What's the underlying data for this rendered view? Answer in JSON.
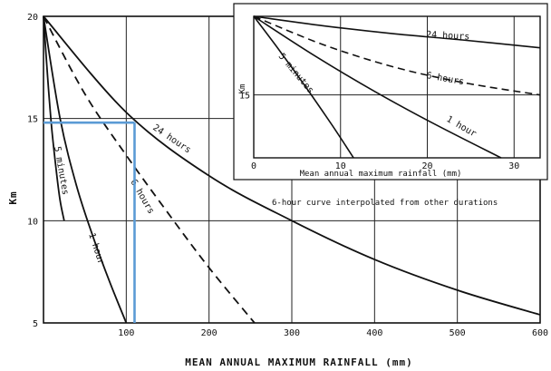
{
  "chart_data": [
    {
      "type": "line",
      "xlabel": "MEAN ANNUAL MAXIMUM RAINFALL (mm)",
      "ylabel": "Km",
      "xlim": [
        0,
        600
      ],
      "ylim": [
        5,
        20
      ],
      "x_ticks": [
        "100",
        "200",
        "300",
        "400",
        "500",
        "600"
      ],
      "y_ticks": [
        "5",
        "10",
        "15",
        "20"
      ],
      "grid": true,
      "note": "6-hour curve interpolated from other durations",
      "series": [
        {
          "name": "5 minutes",
          "style": "solid",
          "x": [
            0,
            5,
            10,
            15,
            20,
            25
          ],
          "y": [
            20,
            17,
            14.5,
            12.6,
            11,
            10
          ]
        },
        {
          "name": "1 hour",
          "style": "solid",
          "x": [
            0,
            20,
            40,
            60,
            80,
            100
          ],
          "y": [
            20,
            15,
            11.7,
            9.2,
            7,
            5
          ]
        },
        {
          "name": "6 hours",
          "style": "dashed",
          "x": [
            0,
            50,
            100,
            150,
            200,
            255
          ],
          "y": [
            20,
            16.2,
            13.2,
            10.4,
            7.7,
            5
          ]
        },
        {
          "name": "24 hours",
          "style": "solid",
          "x": [
            0,
            100,
            200,
            300,
            400,
            500,
            600
          ],
          "y": [
            20,
            15.3,
            12.2,
            10,
            8.1,
            6.6,
            5.4
          ]
        }
      ],
      "highlight": {
        "x": 110,
        "y": 14.8,
        "color": "#5b9bd5"
      }
    },
    {
      "type": "line",
      "xlabel": "Mean annual maximum rainfall (mm)",
      "ylabel": "Km",
      "xlim": [
        0,
        33
      ],
      "ylim": [
        11,
        20
      ],
      "x_ticks": [
        "0",
        "10",
        "20",
        "30"
      ],
      "y_ticks": [
        "15"
      ],
      "grid": true,
      "series": [
        {
          "name": "5 minutes",
          "style": "solid",
          "x": [
            0,
            3,
            6,
            9,
            11.5
          ],
          "y": [
            20,
            17.8,
            15.5,
            13.1,
            11
          ]
        },
        {
          "name": "1 hour",
          "style": "solid",
          "x": [
            0,
            7,
            14,
            21,
            28.5
          ],
          "y": [
            20,
            17.5,
            15.2,
            13.1,
            11
          ]
        },
        {
          "name": "6 hours",
          "style": "dashed",
          "x": [
            0,
            8,
            16,
            24,
            33
          ],
          "y": [
            20,
            18.2,
            16.8,
            15.8,
            15
          ]
        },
        {
          "name": "24 hours",
          "style": "solid",
          "x": [
            0,
            8,
            16,
            24,
            33
          ],
          "y": [
            20,
            19.4,
            18.9,
            18.5,
            18
          ]
        }
      ]
    }
  ]
}
